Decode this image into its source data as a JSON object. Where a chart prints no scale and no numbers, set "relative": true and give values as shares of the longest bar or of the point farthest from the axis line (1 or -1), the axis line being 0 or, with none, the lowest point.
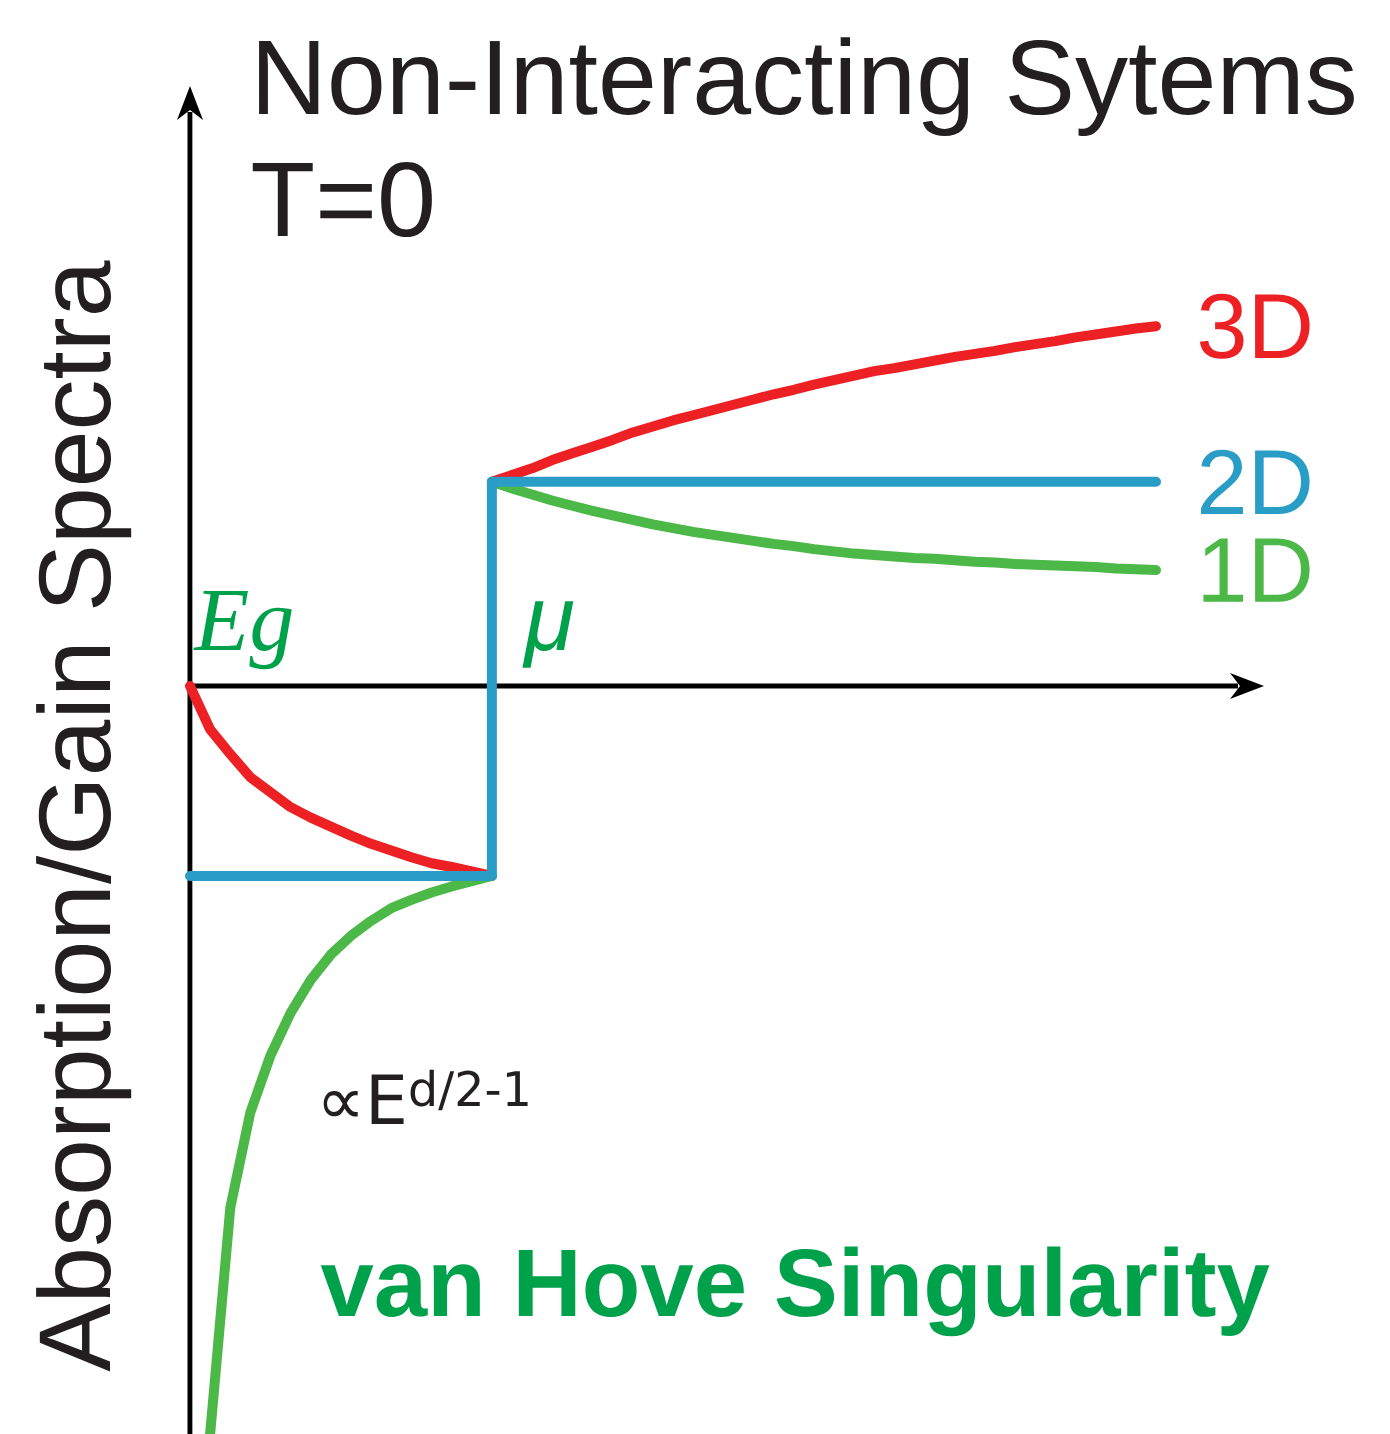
{
  "chart_data": {
    "type": "line",
    "title": "Non-Interacting Sytems",
    "subtitle": "T=0",
    "ylabel": "Absorption/Gain Spectra",
    "relative": true,
    "categories": [
      null,
      null,
      null,
      null,
      null,
      null,
      null,
      null,
      null,
      null,
      null,
      null,
      null,
      null,
      null,
      null,
      null,
      null,
      null,
      null,
      null,
      null,
      null,
      null,
      null,
      null,
      null,
      null,
      null,
      null,
      null,
      null,
      null,
      null,
      null,
      null,
      null,
      null,
      null,
      null,
      null,
      null,
      null,
      null,
      null,
      null,
      null,
      null,
      null
    ],
    "series": [
      {
        "name": "3D",
        "color": "#ed2124",
        "values": [
          null,
          null,
          null,
          null,
          null,
          null,
          null,
          null,
          null,
          null,
          null,
          null,
          null,
          null,
          null,
          0.273,
          0.282,
          0.291,
          0.302,
          0.311,
          0.32,
          0.329,
          0.339,
          0.347,
          0.355,
          0.362,
          0.369,
          0.376,
          0.383,
          0.39,
          0.396,
          0.403,
          0.409,
          0.415,
          0.421,
          0.425,
          0.43,
          0.435,
          0.44,
          0.444,
          0.448,
          0.453,
          0.457,
          0.461,
          0.466,
          0.47,
          0.474,
          0.478,
          0.481
        ]
      },
      {
        "color": "#ed2124",
        "values": [
          0,
          -0.058,
          -0.091,
          -0.122,
          -0.142,
          -0.162,
          -0.176,
          -0.188,
          -0.2,
          -0.211,
          -0.22,
          -0.229,
          -0.237,
          -0.242,
          -0.248,
          -0.254,
          null,
          null,
          null,
          null,
          null,
          null,
          null,
          null,
          null,
          null,
          null,
          null,
          null,
          null,
          null,
          null,
          null,
          null,
          null,
          null,
          null,
          null,
          null,
          null,
          null,
          null,
          null,
          null,
          null,
          null,
          null,
          null,
          null
        ]
      },
      {
        "name": "1D",
        "color": "#4cb848",
        "values": [
          null,
          null,
          null,
          null,
          null,
          null,
          null,
          null,
          null,
          null,
          null,
          null,
          null,
          null,
          null,
          0.273,
          0.264,
          0.256,
          0.248,
          0.241,
          0.234,
          0.228,
          0.222,
          0.216,
          0.211,
          0.206,
          0.202,
          0.198,
          0.194,
          0.19,
          0.187,
          0.183,
          0.18,
          0.177,
          0.175,
          0.173,
          0.171,
          0.17,
          0.168,
          0.166,
          0.165,
          0.163,
          0.162,
          0.161,
          0.16,
          0.159,
          0.157,
          0.156,
          0.155
        ]
      },
      {
        "color": "#4cb848",
        "values": [
          null,
          -1,
          -0.698,
          -0.57,
          -0.494,
          -0.437,
          -0.393,
          -0.359,
          -0.334,
          -0.314,
          -0.297,
          -0.286,
          -0.276,
          -0.268,
          -0.261,
          -0.254,
          null,
          null,
          null,
          null,
          null,
          null,
          null,
          null,
          null,
          null,
          null,
          null,
          null,
          null,
          null,
          null,
          null,
          null,
          null,
          null,
          null,
          null,
          null,
          null,
          null,
          null,
          null,
          null,
          null,
          null,
          null,
          null,
          null
        ]
      },
      {
        "name": "2D",
        "color": "#2a9dc6",
        "type": "step",
        "values": [
          -0.254,
          -0.254,
          -0.254,
          -0.254,
          -0.254,
          -0.254,
          -0.254,
          -0.254,
          -0.254,
          -0.254,
          -0.254,
          -0.254,
          -0.254,
          -0.254,
          -0.254,
          0.273,
          0.273,
          0.273,
          0.273,
          0.273,
          0.273,
          0.273,
          0.273,
          0.273,
          0.273,
          0.273,
          0.273,
          0.273,
          0.273,
          0.273,
          0.273,
          0.273,
          0.273,
          0.273,
          0.273,
          0.273,
          0.273,
          0.273,
          0.273,
          0.273,
          0.273,
          0.273,
          0.273,
          0.273,
          0.273,
          0.273,
          0.273,
          0.273,
          0.273
        ]
      }
    ],
    "annotations": [
      "Eg",
      "μ",
      "∝E$^{d/2-1}$",
      "van Hove Singularity"
    ]
  }
}
